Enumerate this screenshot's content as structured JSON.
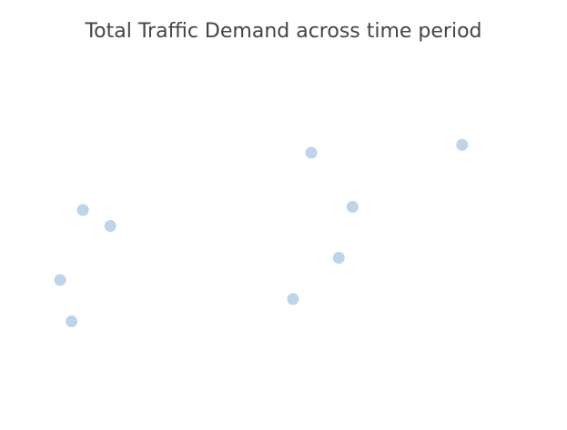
{
  "chart_data": {
    "type": "scatter",
    "title": "Total Traffic Demand across time period",
    "xlabel": "",
    "ylabel": "",
    "xlim": [
      0,
      10
    ],
    "ylim": [
      0,
      10
    ],
    "grid": false,
    "series": [
      {
        "color": "#b3cde6",
        "points": [
          {
            "x": 0.1,
            "y": 3.2
          },
          {
            "x": 0.6,
            "y": 5.4
          },
          {
            "x": 0.35,
            "y": 1.9
          },
          {
            "x": 1.2,
            "y": 4.9
          },
          {
            "x": 5.2,
            "y": 2.6
          },
          {
            "x": 5.6,
            "y": 7.2
          },
          {
            "x": 6.2,
            "y": 3.9
          },
          {
            "x": 6.5,
            "y": 5.5
          },
          {
            "x": 8.9,
            "y": 7.45
          }
        ]
      }
    ]
  }
}
